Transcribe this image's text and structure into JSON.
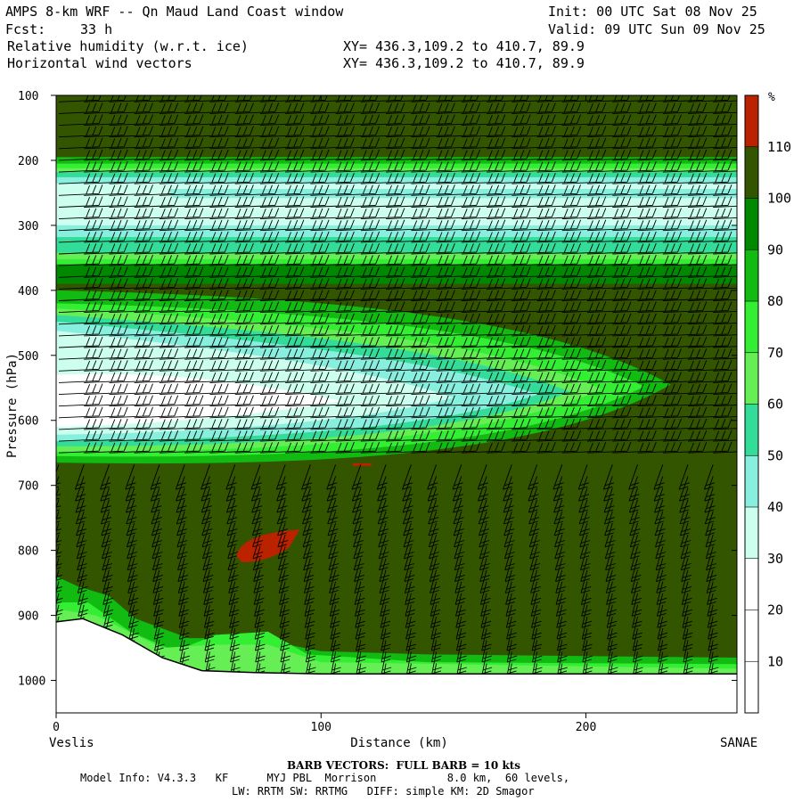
{
  "header": {
    "title": "AMPS 8-km WRF -- Qn Maud Land Coast window",
    "fcst_label": "Fcst:",
    "fcst_value": "33 h",
    "init": "Init: 00 UTC Sat 08 Nov 25",
    "valid": "Valid: 09 UTC Sun 09 Nov 25",
    "field1": "Relative humidity (w.r.t. ice)",
    "field2": "Horizontal wind vectors",
    "xy1": "XY= 436.3,109.2 to 410.7, 89.9",
    "xy2": "XY= 436.3,109.2 to 410.7, 89.9"
  },
  "chart_data": {
    "type": "heatmap",
    "title": "AMPS 8-km WRF -- Qn Maud Land Coast window",
    "xlabel": "Distance (km)",
    "ylabel": "Pressure (hPa)",
    "xlim": [
      0,
      257
    ],
    "ylim": [
      1050,
      100
    ],
    "x_ticks": [
      0,
      100,
      200
    ],
    "y_ticks": [
      100,
      200,
      300,
      400,
      500,
      600,
      700,
      800,
      900,
      1000
    ],
    "left_endpoint": "Veslis",
    "right_endpoint": "SANAE",
    "colorbar": {
      "unit": "%",
      "levels": [
        10,
        20,
        30,
        40,
        50,
        60,
        70,
        80,
        90,
        100,
        110
      ],
      "colors": [
        "#ffffff",
        "#ffffff",
        "#ffffff",
        "#ccffee",
        "#88eedd",
        "#33dd99",
        "#66ee55",
        "#33ee33",
        "#11bb11",
        "#008800",
        "#335500",
        "#bb2200"
      ]
    },
    "background_rh": "100-110 %",
    "features": [
      {
        "name": "upper moist layers",
        "rh": "30-50 %",
        "pressure_range": [
          220,
          370
        ]
      },
      {
        "name": "dry tongue",
        "rh": "20-40 %",
        "pressure_range": [
          420,
          650
        ],
        "x_extent": [
          0,
          220
        ]
      },
      {
        "name": "supersaturation patch",
        "rh": ">110 %",
        "pressure": 800,
        "x_range": [
          68,
          92
        ]
      }
    ],
    "terrain_surface_pressure": [
      [
        0,
        910
      ],
      [
        10,
        905
      ],
      [
        25,
        930
      ],
      [
        40,
        965
      ],
      [
        55,
        985
      ],
      [
        75,
        988
      ],
      [
        100,
        990
      ],
      [
        130,
        990
      ],
      [
        257,
        990
      ]
    ],
    "barb_note": "BARB VECTORS:  FULL BARB = 10 kts"
  },
  "footer": {
    "barb_note": "BARB VECTORS:  FULL BARB = 10 kts",
    "model_info_1": "Model Info: V4.3.3   KF      MYJ PBL  Morrison           8.0 km,  60 levels,",
    "model_info_2": "LW: RRTM SW: RRTMG   DIFF: simple KM: 2D Smagor"
  }
}
